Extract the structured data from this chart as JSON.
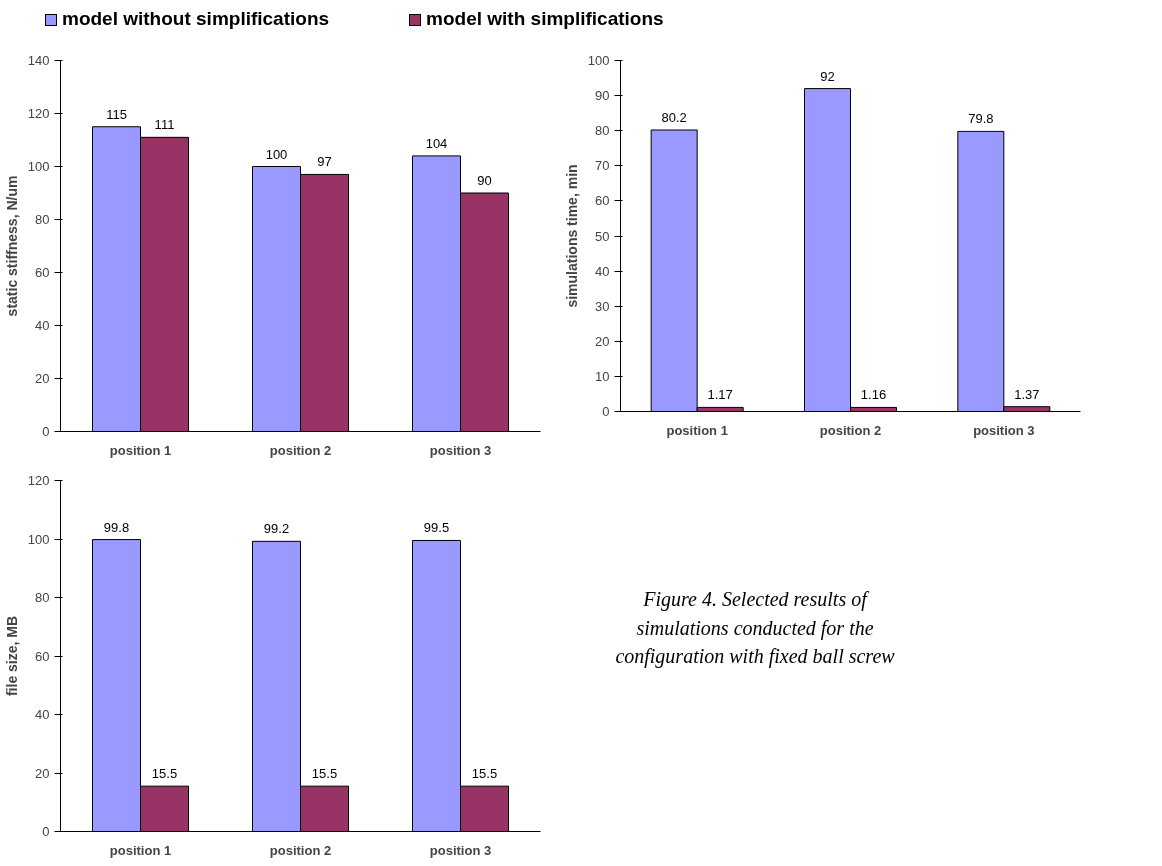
{
  "chart_data": [
    {
      "type": "bar",
      "ylabel": "static stiffness, N/um",
      "categories": [
        "position 1",
        "position 2",
        "position 3"
      ],
      "series": [
        {
          "name": "model without simplifications",
          "color": "#9999ff",
          "values": [
            115,
            100,
            104
          ]
        },
        {
          "name": "model with simplifications",
          "color": "#993366",
          "values": [
            111,
            97,
            90
          ]
        }
      ],
      "ylim": [
        0,
        140
      ],
      "yticks": [
        0,
        20,
        40,
        60,
        80,
        100,
        120,
        140
      ],
      "data_labels": true,
      "legend": "top",
      "grid": false
    },
    {
      "type": "bar",
      "ylabel": "simulations time, min",
      "categories": [
        "position 1",
        "position 2",
        "position 3"
      ],
      "series": [
        {
          "color": "#9999ff",
          "values": [
            80.2,
            92,
            79.8
          ]
        },
        {
          "color": "#993366",
          "values": [
            1.17,
            1.16,
            1.37
          ]
        }
      ],
      "ylim": [
        0,
        100
      ],
      "yticks": [
        0,
        10,
        20,
        30,
        40,
        50,
        60,
        70,
        80,
        90,
        100
      ],
      "data_labels": true,
      "grid": false
    },
    {
      "type": "bar",
      "ylabel": "file size, MB",
      "categories": [
        "position 1",
        "position 2",
        "position 3"
      ],
      "series": [
        {
          "color": "#9999ff",
          "values": [
            99.8,
            99.2,
            99.5
          ]
        },
        {
          "color": "#993366",
          "values": [
            15.5,
            15.5,
            15.5
          ]
        }
      ],
      "ylim": [
        0,
        120
      ],
      "yticks": [
        0,
        20,
        40,
        60,
        80,
        100,
        120
      ],
      "data_labels": true,
      "grid": false
    },
    {
      "type": "other",
      "annotations": [
        "Figure 4. Selected results of simulations conducted for the configuration with fixed ball screw"
      ]
    }
  ]
}
